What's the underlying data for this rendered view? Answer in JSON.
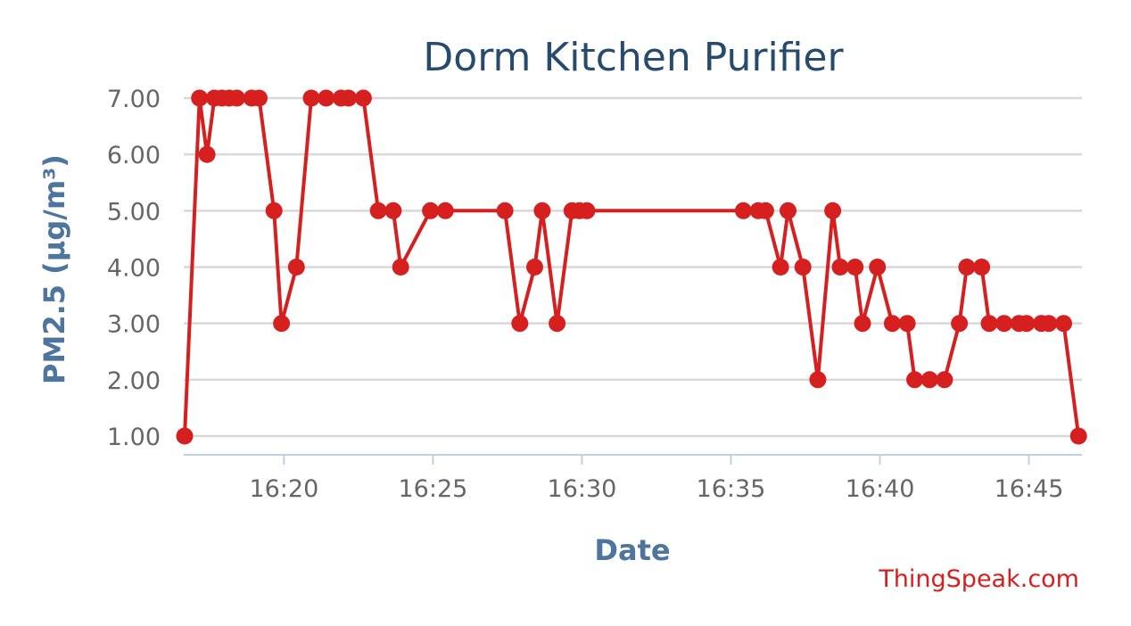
{
  "chart_data": {
    "type": "line",
    "title": "Dorm Kitchen Purifier",
    "xlabel": "Date",
    "ylabel": "PM2.5 (μg/m³)",
    "credit": "ThingSpeak.com",
    "series_color": "#d62020",
    "grid": true,
    "legend": "none",
    "xlim": [
      "16:16:40",
      "16:46:45"
    ],
    "ylim": [
      1,
      7
    ],
    "y_ticks": [
      "1.00",
      "2.00",
      "3.00",
      "4.00",
      "5.00",
      "6.00",
      "7.00"
    ],
    "x_ticks": [
      "16:20",
      "16:25",
      "16:30",
      "16:35",
      "16:40",
      "16:45"
    ],
    "series": [
      {
        "x": [
          "16:16:40",
          "16:17:10",
          "16:17:25",
          "16:17:40",
          "16:17:55",
          "16:18:10",
          "16:18:25",
          "16:18:55",
          "16:19:10",
          "16:19:40",
          "16:19:55",
          "16:20:25",
          "16:20:55",
          "16:21:25",
          "16:21:55",
          "16:22:10",
          "16:22:40",
          "16:23:10",
          "16:23:40",
          "16:23:55",
          "16:24:55",
          "16:25:25",
          "16:27:25",
          "16:27:55",
          "16:28:25",
          "16:28:40",
          "16:29:10",
          "16:29:40",
          "16:29:55",
          "16:30:10",
          "16:35:25",
          "16:35:55",
          "16:36:10",
          "16:36:40",
          "16:36:55",
          "16:37:25",
          "16:37:55",
          "16:38:25",
          "16:38:40",
          "16:39:10",
          "16:39:25",
          "16:39:55",
          "16:40:25",
          "16:40:55",
          "16:41:10",
          "16:41:40",
          "16:42:10",
          "16:42:40",
          "16:42:55",
          "16:43:25",
          "16:43:40",
          "16:44:10",
          "16:44:40",
          "16:44:55",
          "16:45:25",
          "16:45:40",
          "16:46:10",
          "16:46:40"
        ],
        "values": [
          1,
          7,
          6,
          7,
          7,
          7,
          7,
          7,
          7,
          5,
          3,
          4,
          7,
          7,
          7,
          7,
          7,
          5,
          5,
          4,
          5,
          5,
          5,
          3,
          4,
          5,
          3,
          5,
          5,
          5,
          5,
          5,
          5,
          4,
          5,
          4,
          2,
          5,
          4,
          4,
          3,
          4,
          3,
          3,
          2,
          2,
          2,
          3,
          4,
          4,
          3,
          3,
          3,
          3,
          3,
          3,
          3,
          1
        ]
      }
    ]
  }
}
